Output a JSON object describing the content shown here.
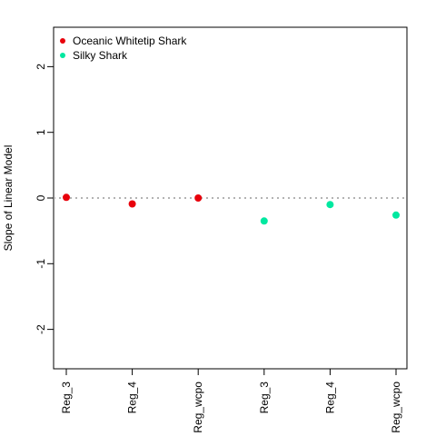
{
  "chart_data": {
    "type": "scatter",
    "title": "",
    "xlabel": "",
    "ylabel": "Slope of Linear Model",
    "categories": [
      "Reg_3",
      "Reg_4",
      "Reg_wcpo",
      "Reg_3",
      "Reg_4",
      "Reg_wcpo"
    ],
    "ylim": [
      -2.6,
      2.6
    ],
    "yticks": [
      -2,
      -1,
      0,
      1,
      2
    ],
    "reference_line": {
      "y": 0,
      "style": "dotted",
      "color": "#b3b3b3"
    },
    "grid": false,
    "legend_position": "top-left",
    "series": [
      {
        "name": "Oceanic Whitetip Shark",
        "color": "#e8000b",
        "x_index": [
          0,
          1,
          2
        ],
        "values": [
          0.01,
          -0.09,
          0.0
        ]
      },
      {
        "name": "Silky Shark",
        "color": "#00e8a0",
        "x_index": [
          3,
          4,
          5
        ],
        "values": [
          -0.35,
          -0.1,
          -0.26
        ]
      }
    ]
  }
}
